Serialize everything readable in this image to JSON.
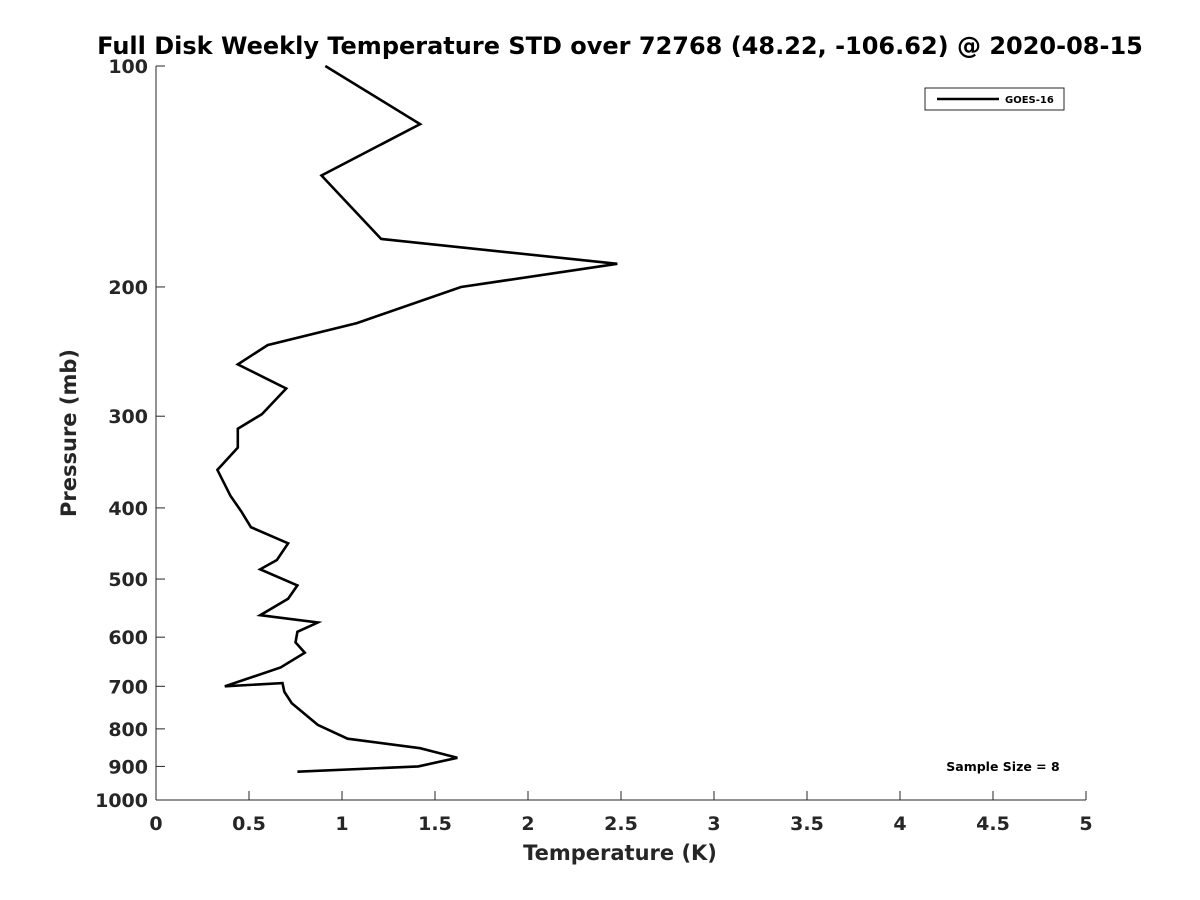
{
  "chart_data": {
    "type": "line",
    "title": "Full Disk Weekly Temperature STD over 72768 (48.22, -106.62) @ 2020-08-15",
    "xlabel": "Temperature (K)",
    "ylabel": "Pressure (mb)",
    "xlim": [
      0,
      5
    ],
    "ylim": [
      100,
      1000
    ],
    "y_scale": "log",
    "y_direction": "reversed",
    "x_ticks": [
      "0",
      "0.5",
      "1",
      "1.5",
      "2",
      "2.5",
      "3",
      "3.5",
      "4",
      "4.5",
      "5"
    ],
    "y_ticks": [
      {
        "value": 100,
        "label": "100"
      },
      {
        "value": 200,
        "label": "200"
      },
      {
        "value": 300,
        "label": "300"
      },
      {
        "value": 400,
        "label": "400"
      },
      {
        "value": 500,
        "label": "500"
      },
      {
        "value": 600,
        "label": "600"
      },
      {
        "value": 700,
        "label": "700"
      },
      {
        "value": 800,
        "label": "800"
      },
      {
        "value": 900,
        "label": "900"
      },
      {
        "value": 1000,
        "label": "1000"
      }
    ],
    "grid": false,
    "legend_position": "top-right",
    "series": [
      {
        "name": "GOES-16",
        "color": "#000000",
        "x": [
          0.91,
          1.42,
          0.89,
          1.21,
          2.48,
          1.64,
          1.08,
          0.6,
          0.44,
          0.7,
          0.57,
          0.44,
          0.44,
          0.33,
          0.4,
          0.46,
          0.51,
          0.71,
          0.65,
          0.56,
          0.76,
          0.71,
          0.56,
          0.87,
          0.76,
          0.75,
          0.8,
          0.67,
          0.48,
          0.37,
          0.68,
          0.69,
          0.73,
          0.87,
          1.03,
          1.42,
          1.46,
          1.62,
          1.41,
          0.76
        ],
        "y": [
          100,
          120,
          141,
          172,
          186,
          200,
          224,
          240,
          255,
          275,
          298,
          312,
          331,
          355,
          385,
          405,
          425,
          447,
          471,
          485,
          510,
          532,
          560,
          573,
          590,
          610,
          630,
          660,
          685,
          700,
          693,
          712,
          738,
          790,
          825,
          850,
          855,
          876,
          900,
          915
        ]
      }
    ],
    "annotations": [
      "Sample Size = 8"
    ]
  }
}
